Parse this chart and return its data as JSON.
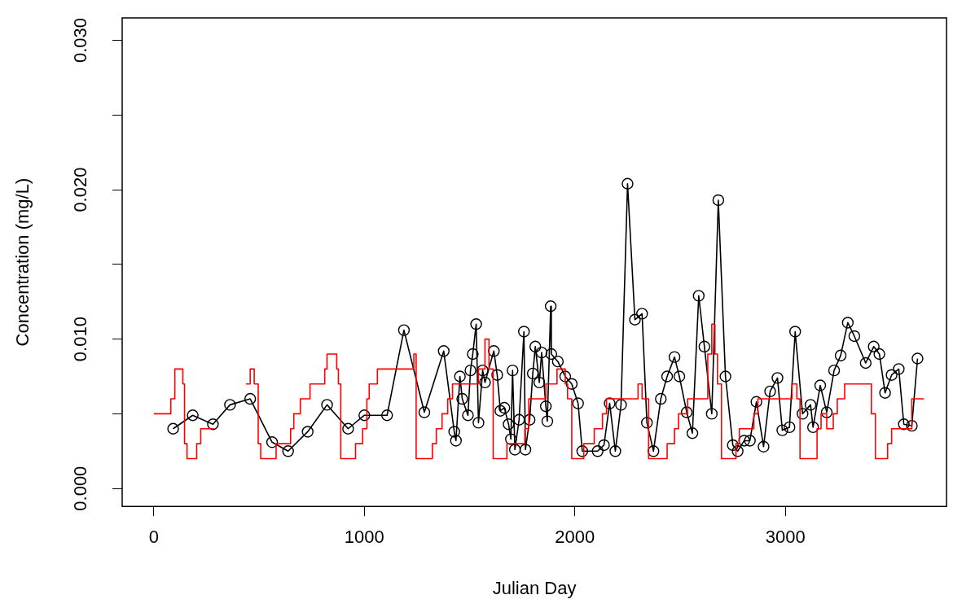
{
  "chart_data": {
    "type": "line",
    "xlabel": "Julian Day",
    "ylabel": "Concentration (mg/L)",
    "xlim": [
      -150,
      3765
    ],
    "ylim": [
      -0.0012,
      0.0315
    ],
    "xticks": [
      0,
      1000,
      2000,
      3000
    ],
    "yticks": [
      {
        "value": 0,
        "label": "0.000"
      },
      {
        "value": 0.005,
        "label": null
      },
      {
        "value": 0.01,
        "label": "0.010"
      },
      {
        "value": 0.015,
        "label": null
      },
      {
        "value": 0.02,
        "label": "0.020"
      },
      {
        "value": 0.025,
        "label": null
      },
      {
        "value": 0.03,
        "label": "0.030"
      }
    ],
    "grid": false,
    "legend": false,
    "series": [
      {
        "type": "step",
        "color": "#ff0000",
        "marker": "none",
        "x": [
          0,
          81,
          100,
          138,
          146,
          158,
          204,
          223,
          285,
          300,
          438,
          458,
          477,
          496,
          508,
          581,
          650,
          665,
          696,
          742,
          812,
          823,
          869,
          877,
          888,
          958,
          992,
          1012,
          1023,
          1062,
          1235,
          1246,
          1323,
          1342,
          1369,
          1396,
          1419,
          1542,
          1573,
          1592,
          1612,
          1677,
          1762,
          1781,
          1862,
          1915,
          1954,
          1965,
          1985,
          2042,
          2092,
          2131,
          2150,
          2300,
          2319,
          2350,
          2438,
          2473,
          2492,
          2535,
          2631,
          2650,
          2665,
          2677,
          2696,
          2765,
          2781,
          2850,
          2869,
          3031,
          3054,
          3069,
          3150,
          3169,
          3196,
          3227,
          3246,
          3281,
          3408,
          3427,
          3485,
          3504,
          3600,
          3658
        ],
        "values": [
          0.005,
          0.006,
          0.008,
          0.007,
          0.003,
          0.002,
          0.003,
          0.004,
          0.004,
          null,
          0.007,
          0.008,
          0.007,
          0.003,
          0.002,
          0.003,
          0.004,
          0.005,
          0.006,
          0.007,
          0.008,
          0.009,
          0.008,
          0.007,
          0.002,
          0.003,
          0.004,
          0.006,
          0.007,
          0.008,
          0.009,
          0.002,
          0.003,
          0.004,
          0.005,
          0.006,
          0.007,
          0.008,
          0.01,
          0.008,
          0.002,
          0.003,
          0.004,
          0.006,
          0.007,
          0.008,
          0.007,
          0.006,
          0.002,
          0.003,
          0.004,
          0.005,
          0.006,
          0.007,
          0.006,
          0.002,
          0.003,
          0.004,
          0.005,
          0.006,
          0.009,
          0.011,
          0.009,
          0.007,
          0.002,
          0.003,
          0.004,
          0.005,
          0.006,
          0.007,
          0.006,
          0.002,
          0.004,
          0.005,
          0.004,
          0.005,
          0.006,
          0.007,
          0.005,
          0.002,
          0.003,
          0.004,
          0.006,
          0.006
        ]
      },
      {
        "type": "line",
        "color": "#000000",
        "marker": "circle",
        "x": [
          92,
          185,
          281,
          362,
          458,
          562,
          638,
          731,
          823,
          923,
          1000,
          1108,
          1188,
          1285,
          1377,
          1427,
          1435,
          1454,
          1465,
          1492,
          1504,
          1515,
          1531,
          1542,
          1562,
          1573,
          1615,
          1631,
          1646,
          1665,
          1685,
          1696,
          1704,
          1715,
          1735,
          1758,
          1765,
          1785,
          1800,
          1812,
          1831,
          1842,
          1862,
          1869,
          1885,
          1888,
          1919,
          1954,
          1985,
          2015,
          2035,
          2108,
          2138,
          2165,
          2192,
          2219,
          2250,
          2285,
          2319,
          2342,
          2373,
          2408,
          2438,
          2473,
          2496,
          2531,
          2558,
          2588,
          2615,
          2650,
          2681,
          2715,
          2750,
          2773,
          2804,
          2831,
          2862,
          2896,
          2927,
          2962,
          2985,
          3019,
          3046,
          3081,
          3119,
          3131,
          3165,
          3196,
          3231,
          3262,
          3296,
          3327,
          3381,
          3419,
          3446,
          3473,
          3504,
          3538,
          3562,
          3600,
          3627
        ],
        "values": [
          0.004,
          0.0049,
          0.0043,
          0.0056,
          0.006,
          0.0031,
          0.0025,
          0.0038,
          0.0056,
          0.004,
          0.0049,
          0.0049,
          0.0106,
          0.0051,
          0.0092,
          0.0038,
          0.0032,
          0.0075,
          0.006,
          0.0049,
          0.0079,
          0.009,
          0.011,
          0.0044,
          0.0079,
          0.0071,
          0.0092,
          0.0076,
          0.0052,
          0.0054,
          0.0043,
          0.0033,
          0.0079,
          0.0026,
          0.0046,
          0.0105,
          0.0026,
          0.0046,
          0.0077,
          0.0095,
          0.0071,
          0.0091,
          0.0055,
          0.0045,
          0.0122,
          0.009,
          0.0085,
          0.0075,
          0.007,
          0.0057,
          0.0025,
          0.0025,
          0.0029,
          0.0057,
          0.0025,
          0.0056,
          0.0204,
          0.0113,
          0.0117,
          0.0044,
          0.0025,
          0.006,
          0.0075,
          0.0088,
          0.0075,
          0.0051,
          0.0037,
          0.0129,
          0.0095,
          0.005,
          0.0193,
          0.0075,
          0.0029,
          0.0025,
          0.0032,
          0.0032,
          0.0058,
          0.0028,
          0.0065,
          0.0074,
          0.0039,
          0.0041,
          0.0105,
          0.005,
          0.0056,
          0.0041,
          0.0069,
          0.0051,
          0.0079,
          0.0089,
          0.0111,
          0.0102,
          0.0084,
          0.0095,
          0.009,
          0.0064,
          0.0076,
          0.008,
          0.0043,
          0.0042,
          0.0087
        ]
      }
    ]
  }
}
